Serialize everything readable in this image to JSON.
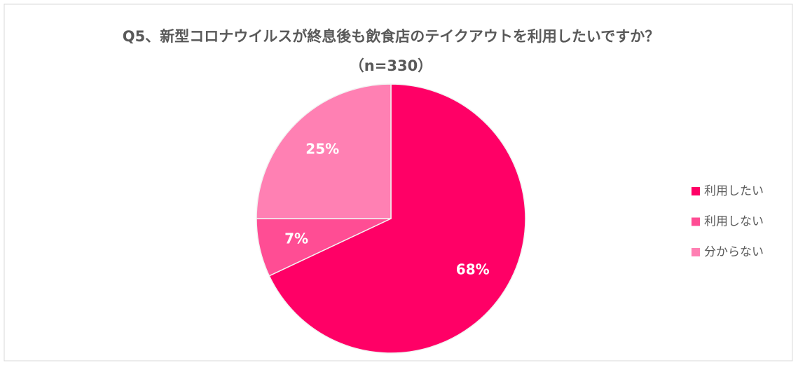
{
  "chart_data": {
    "type": "pie",
    "title": "Q5、新型コロナウイルスが終息後も飲食店のテイクアウトを利用したいですか？",
    "subtitle": "（n=330）",
    "categories": [
      "利用したい",
      "利用しない",
      "分からない"
    ],
    "values": [
      68,
      7,
      25
    ],
    "value_labels": [
      "68%",
      "7%",
      "25%"
    ],
    "colors": [
      "#ff0066",
      "#ff4d94",
      "#ff80b3"
    ],
    "legend": "right"
  }
}
